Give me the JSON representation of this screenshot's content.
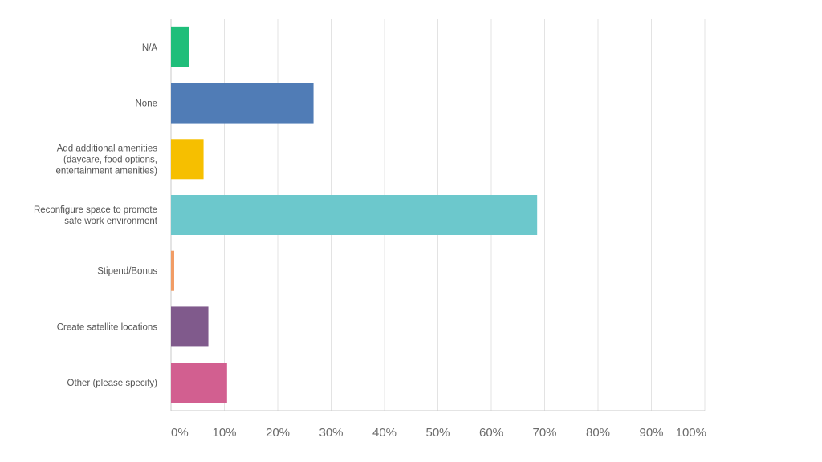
{
  "chart_data": {
    "type": "bar",
    "orientation": "horizontal",
    "categories": [
      [
        "N/A"
      ],
      [
        "None"
      ],
      [
        "Add additional amenities",
        "(daycare, food options,",
        "entertainment amenities)"
      ],
      [
        "Reconfigure space to promote",
        "safe work environment"
      ],
      [
        "Stipend/Bonus"
      ],
      [
        "Create satellite locations"
      ],
      [
        "Other (please specify)"
      ]
    ],
    "values": [
      3.4,
      26.7,
      6.1,
      68.6,
      0.6,
      7.0,
      10.5
    ],
    "colors": [
      "#1fbe7a",
      "#507cb6",
      "#f6bf00",
      "#6cc8cc",
      "#f19c65",
      "#805a8c",
      "#d25f90"
    ],
    "xlim": [
      0,
      100
    ],
    "xticks": [
      "0%",
      "10%",
      "20%",
      "30%",
      "40%",
      "50%",
      "60%",
      "70%",
      "80%",
      "90%",
      "100%"
    ],
    "grid": true
  }
}
